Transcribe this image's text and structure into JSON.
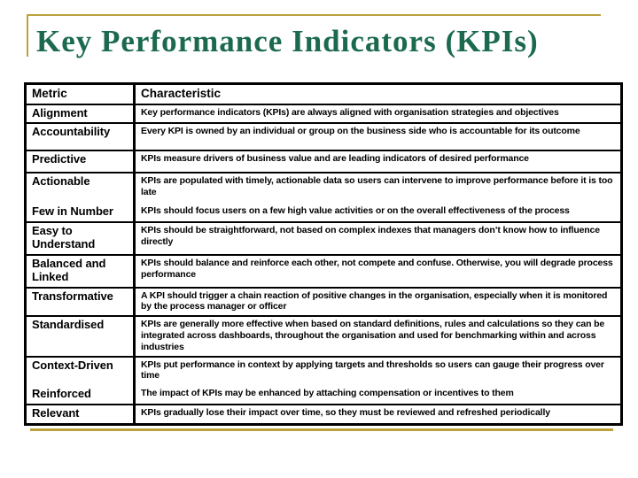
{
  "slide": {
    "title": "Key Performance Indicators (KPIs)"
  },
  "colors": {
    "title_green": "#1B6A4E",
    "accent_gold": "#BCA23D",
    "table_border": "#000000",
    "text": "#000000",
    "background": "#FFFFFF"
  },
  "table": {
    "headers": [
      "Metric",
      "Characteristic"
    ],
    "rows": [
      {
        "metric": "Alignment",
        "characteristic": "Key performance indicators (KPIs) are always aligned with organisation strategies and objectives"
      },
      {
        "metric": "Accountability",
        "characteristic": "Every KPI is owned by an individual or group on the business side who is accountable for its outcome"
      },
      {
        "metric": "Predictive",
        "characteristic": "KPIs measure drivers of business value and are leading indicators of desired performance"
      },
      {
        "metric": "Actionable",
        "characteristic": "KPIs are populated with timely, actionable data so users can intervene to improve performance before it is too late"
      },
      {
        "metric": "Few in Number",
        "characteristic": "KPIs should focus users on a few high value activities or on the overall effectiveness of the process",
        "merged_with_previous": true
      },
      {
        "metric": "Easy to Understand",
        "characteristic": "KPIs should be straightforward, not based on complex indexes that managers don’t know how to influence directly"
      },
      {
        "metric": "Balanced and Linked",
        "characteristic": "KPIs should balance and reinforce each other, not compete and confuse. Otherwise, you will degrade process performance"
      },
      {
        "metric": "Transformative",
        "characteristic": "A KPI should trigger a chain reaction of positive changes in the organisation, especially when it is monitored by the process manager or officer"
      },
      {
        "metric": "Standardised",
        "characteristic": "KPIs are generally more effective when based on standard definitions, rules and calculations so they can be integrated across dashboards, throughout the organisation and used for benchmarking within and across industries"
      },
      {
        "metric": "Context-Driven",
        "characteristic": "KPIs put performance in context by applying targets and thresholds so users can gauge their progress over time"
      },
      {
        "metric": "Reinforced",
        "characteristic": "The impact of KPIs may be enhanced by attaching compensation or incentives to them",
        "merged_with_previous": true
      },
      {
        "metric": "Relevant",
        "characteristic": "KPIs gradually lose their impact over time, so they must be reviewed and refreshed periodically"
      }
    ]
  }
}
